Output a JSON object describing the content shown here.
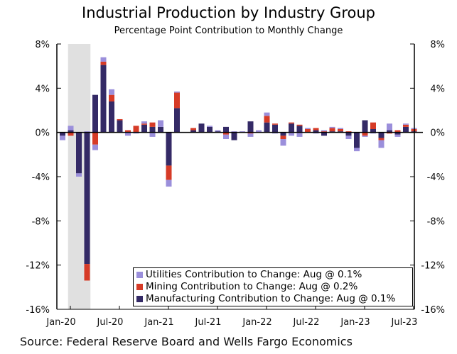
{
  "chart_data": {
    "type": "bar",
    "stacked": true,
    "title": "Industrial Production by Industry Group",
    "subtitle": "Percentage Point Contribution to Monthly Change",
    "source": "Source: Federal Reserve Board and Wells Fargo Economics",
    "xlabel": "",
    "ylabel": "",
    "ylim": [
      -16,
      8
    ],
    "yticks": [
      "8%",
      "4%",
      "0%",
      "-4%",
      "-8%",
      "-12%",
      "-16%"
    ],
    "ytick_values": [
      8,
      4,
      0,
      -4,
      -8,
      -12,
      -16
    ],
    "xtick_labels": [
      "Jan-20",
      "Jul-20",
      "Jan-21",
      "Jul-21",
      "Jan-22",
      "Jul-22",
      "Jan-23",
      "Jul-23"
    ],
    "recession_shading": {
      "start": "Feb-20",
      "end": "Apr-20"
    },
    "legend_position": "bottom-right",
    "categories": [
      "Jan-20",
      "Feb-20",
      "Mar-20",
      "Apr-20",
      "May-20",
      "Jun-20",
      "Jul-20",
      "Aug-20",
      "Sep-20",
      "Oct-20",
      "Nov-20",
      "Dec-20",
      "Jan-21",
      "Feb-21",
      "Mar-21",
      "Apr-21",
      "May-21",
      "Jun-21",
      "Jul-21",
      "Aug-21",
      "Sep-21",
      "Oct-21",
      "Nov-21",
      "Dec-21",
      "Jan-22",
      "Feb-22",
      "Mar-22",
      "Apr-22",
      "May-22",
      "Jun-22",
      "Jul-22",
      "Aug-22",
      "Sep-22",
      "Oct-22",
      "Nov-22",
      "Dec-22",
      "Jan-23",
      "Feb-23",
      "Mar-23",
      "Apr-23",
      "May-23",
      "Jun-23",
      "Jul-23",
      "Aug-23"
    ],
    "series": [
      {
        "name": "Utilities Contribution to Change: Aug @ 0.1%",
        "color": "#9b8fdb",
        "values": [
          -0.4,
          0.4,
          -0.3,
          0.1,
          -0.5,
          0.4,
          0.5,
          0.0,
          -0.3,
          -0.1,
          0.2,
          -0.4,
          0.6,
          -0.6,
          0.1,
          0.0,
          0.0,
          0.0,
          0.1,
          0.1,
          -0.4,
          0.1,
          0.1,
          -0.3,
          0.2,
          0.3,
          -0.1,
          -0.6,
          -0.3,
          -0.4,
          0.1,
          -0.1,
          0.1,
          0.1,
          0.1,
          -0.3,
          -0.3,
          -0.1,
          -0.1,
          -0.7,
          0.6,
          -0.2,
          0.1,
          0.1
        ]
      },
      {
        "name": "Mining Contribution to Change: Aug @ 0.2%",
        "color": "#d63b27",
        "values": [
          0.0,
          -0.3,
          0.0,
          -1.5,
          -1.1,
          0.3,
          0.6,
          0.1,
          0.2,
          0.6,
          0.1,
          0.4,
          0.0,
          -1.3,
          1.4,
          0.0,
          0.2,
          0.0,
          0.0,
          0.0,
          -0.2,
          0.0,
          0.0,
          -0.1,
          0.0,
          0.6,
          0.1,
          -0.3,
          0.1,
          0.1,
          0.3,
          0.2,
          0.1,
          0.3,
          0.2,
          0.1,
          0.0,
          -0.3,
          0.6,
          -0.2,
          -0.1,
          0.2,
          0.2,
          0.2
        ]
      },
      {
        "name": "Manufacturing Contribution to Change: Aug @ 0.1%",
        "color": "#342a66",
        "values": [
          -0.3,
          0.2,
          -3.7,
          -11.9,
          3.4,
          6.1,
          2.8,
          1.1,
          0.0,
          0.0,
          0.7,
          0.5,
          0.5,
          -3.0,
          2.2,
          0.0,
          0.2,
          0.8,
          0.5,
          0.1,
          0.5,
          -0.7,
          0.0,
          1.0,
          0.0,
          0.9,
          0.7,
          -0.3,
          0.8,
          0.6,
          0.0,
          0.2,
          -0.3,
          0.1,
          0.1,
          -0.3,
          -1.4,
          1.1,
          0.3,
          -0.5,
          0.2,
          -0.2,
          0.5,
          0.1
        ]
      }
    ]
  }
}
